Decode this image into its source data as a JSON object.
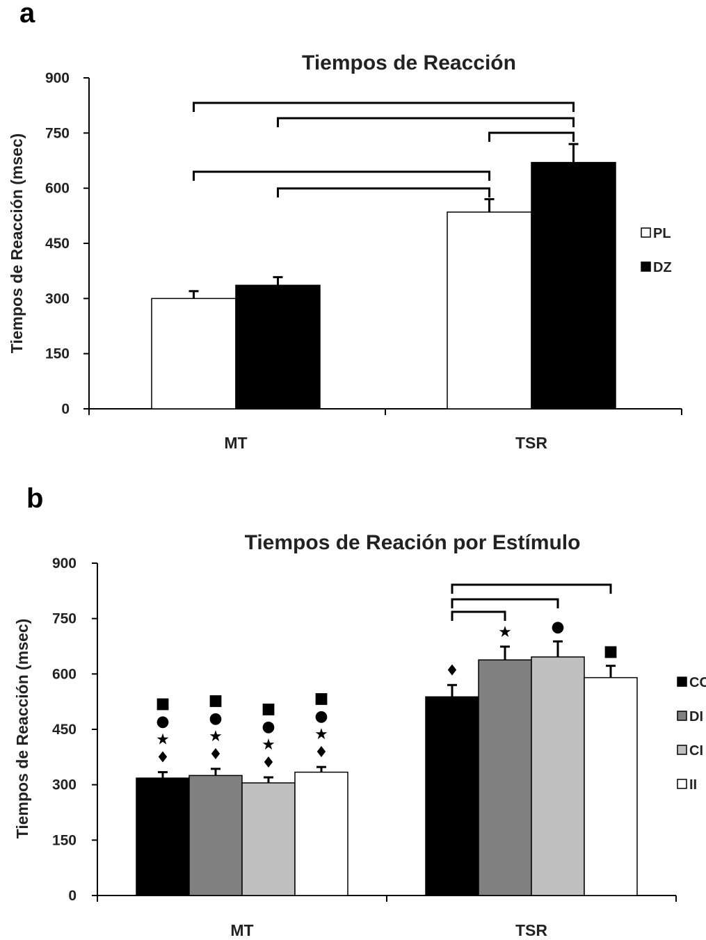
{
  "chart_data": [
    {
      "panel": "a",
      "type": "bar",
      "title": "Tiempos de Reacción",
      "ylabel": "Tiempos de Reacción (msec)",
      "xlabel": "",
      "ylim": [
        0,
        900
      ],
      "yticks": [
        0,
        150,
        300,
        450,
        600,
        750,
        900
      ],
      "categories": [
        "MT",
        "TSR"
      ],
      "series": [
        {
          "name": "PL",
          "color": "#ffffff",
          "values": [
            300,
            535
          ],
          "errors": [
            20,
            35
          ]
        },
        {
          "name": "DZ",
          "color": "#000000",
          "values": [
            336,
            670
          ],
          "errors": [
            22,
            50
          ]
        }
      ],
      "significance_brackets": [
        {
          "from": [
            0,
            0
          ],
          "to": [
            1,
            1
          ]
        },
        {
          "from": [
            0,
            1
          ],
          "to": [
            1,
            1
          ]
        },
        {
          "from": [
            1,
            0
          ],
          "to": [
            1,
            1
          ]
        },
        {
          "from": [
            0,
            0
          ],
          "to": [
            1,
            0
          ]
        },
        {
          "from": [
            0,
            1
          ],
          "to": [
            1,
            0
          ]
        }
      ],
      "legend_position": "right",
      "grid": false
    },
    {
      "panel": "b",
      "type": "bar",
      "title": "Tiempos de Reación por Estímulo",
      "ylabel": "Tiempos de Reacción (msec)",
      "xlabel": "",
      "ylim": [
        0,
        900
      ],
      "yticks": [
        0,
        150,
        300,
        450,
        600,
        750,
        900
      ],
      "categories": [
        "MT",
        "TSR"
      ],
      "series": [
        {
          "name": "CC",
          "color": "#000000",
          "values": [
            318,
            538
          ],
          "errors": [
            16,
            32
          ]
        },
        {
          "name": "DI",
          "color": "#808080",
          "values": [
            325,
            638
          ],
          "errors": [
            18,
            36
          ]
        },
        {
          "name": "CI",
          "color": "#c0c0c0",
          "values": [
            305,
            646
          ],
          "errors": [
            15,
            42
          ]
        },
        {
          "name": "II",
          "color": "#ffffff",
          "values": [
            334,
            590
          ],
          "errors": [
            14,
            32
          ]
        }
      ],
      "significance_brackets": [
        {
          "from": [
            1,
            0
          ],
          "to": [
            1,
            3
          ]
        },
        {
          "from": [
            1,
            0
          ],
          "to": [
            1,
            2
          ]
        },
        {
          "from": [
            1,
            0
          ],
          "to": [
            1,
            1
          ]
        }
      ],
      "markers": {
        "MT": [
          "■",
          "●",
          "★",
          "♦"
        ],
        "TSR": [
          "♦",
          "★",
          "●",
          "■"
        ]
      },
      "legend_position": "right",
      "grid": false
    }
  ],
  "panels": {
    "a": {
      "letter": "a"
    },
    "b": {
      "letter": "b"
    }
  }
}
